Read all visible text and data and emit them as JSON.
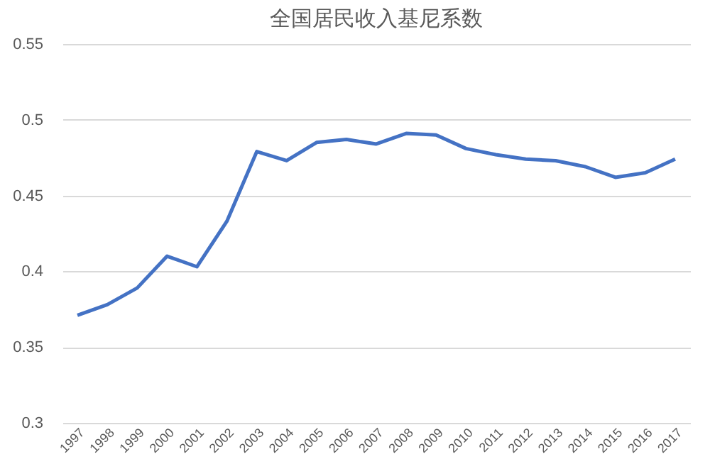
{
  "chart_data": {
    "type": "line",
    "title": "全国居民收入基尼系数",
    "categories": [
      "1997",
      "1998",
      "1999",
      "2000",
      "2001",
      "2002",
      "2003",
      "2004",
      "2005",
      "2006",
      "2007",
      "2008",
      "2009",
      "2010",
      "2011",
      "2012",
      "2013",
      "2014",
      "2015",
      "2016",
      "2017"
    ],
    "series": [
      {
        "color": "#4472c4",
        "values": [
          0.371,
          0.378,
          0.389,
          0.41,
          0.403,
          0.433,
          0.479,
          0.473,
          0.485,
          0.487,
          0.484,
          0.491,
          0.49,
          0.481,
          0.477,
          0.474,
          0.473,
          0.469,
          0.462,
          0.465,
          0.474
        ]
      }
    ],
    "ylim": [
      0.3,
      0.55
    ],
    "yticks": [
      0.3,
      0.35,
      0.4,
      0.45,
      0.5,
      0.55
    ],
    "grid": "y",
    "legend": false,
    "marker": "none",
    "line_style": "solid"
  }
}
